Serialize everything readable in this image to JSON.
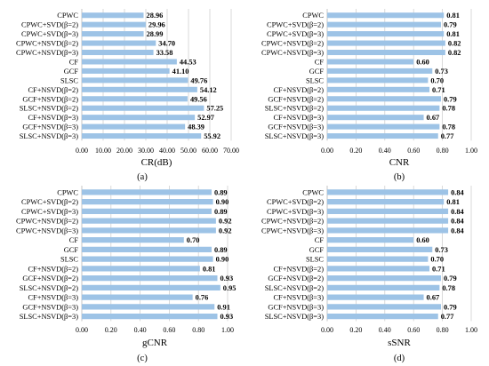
{
  "colors": {
    "bar": "#9DC3E6",
    "grid": "#d0d0d0",
    "axis": "#bfbfbf"
  },
  "chart_data": [
    {
      "type": "bar",
      "orientation": "horizontal",
      "panel_label": "(a)",
      "xlabel": "CR(dB)",
      "xlim": [
        0,
        70
      ],
      "xticks": [
        "0.00",
        "10.00",
        "20.00",
        "30.00",
        "40.00",
        "50.00",
        "60.00",
        "70.00"
      ],
      "categories": [
        "CPWC",
        "CPWC+SVD(β=2)",
        "CPWC+SVD(β=3)",
        "CPWC+NSVD(β=2)",
        "CPWC+NSVD(β=3)",
        "CF",
        "GCF",
        "SLSC",
        "CF+NSVD(β=2)",
        "GCF+NSVD(β=2)",
        "SLSC+NSVD(β=2)",
        "CF+NSVD(β=3)",
        "GCF+NSVD(β=3)",
        "SLSC+NSVD(β=3)"
      ],
      "values": [
        28.96,
        29.96,
        28.99,
        34.7,
        33.58,
        44.53,
        41.1,
        49.76,
        54.12,
        49.56,
        57.25,
        52.97,
        48.39,
        55.92
      ],
      "value_labels": [
        "28.96",
        "29.96",
        "28.99",
        "34.70",
        "33.58",
        "44.53",
        "41.10",
        "49.76",
        "54.12",
        "49.56",
        "57.25",
        "52.97",
        "48.39",
        "55.92"
      ],
      "grid": true
    },
    {
      "type": "bar",
      "orientation": "horizontal",
      "panel_label": "(b)",
      "xlabel": "CNR",
      "xlim": [
        0,
        1
      ],
      "xticks": [
        "0.00",
        "0.20",
        "0.40",
        "0.60",
        "0.80",
        "1.00"
      ],
      "categories": [
        "CPWC",
        "CPWC+SVD(β=2)",
        "CPWC+SVD(β=3)",
        "CPWC+NSVD(β=2)",
        "CPWC+NSVD(β=3)",
        "CF",
        "GCF",
        "SLSC",
        "CF+NSVD(β=2)",
        "GCF+NSVD(β=2)",
        "SLSC+NSVD(β=2)",
        "CF+NSVD(β=3)",
        "GCF+NSVD(β=3)",
        "SLSC+NSVD(β=3)"
      ],
      "values": [
        0.81,
        0.79,
        0.81,
        0.82,
        0.82,
        0.6,
        0.73,
        0.7,
        0.71,
        0.79,
        0.78,
        0.67,
        0.78,
        0.77
      ],
      "value_labels": [
        "0.81",
        "0.79",
        "0.81",
        "0.82",
        "0.82",
        "0.60",
        "0.73",
        "0.70",
        "0.71",
        "0.79",
        "0.78",
        "0.67",
        "0.78",
        "0.77"
      ],
      "grid": true
    },
    {
      "type": "bar",
      "orientation": "horizontal",
      "panel_label": "(c)",
      "xlabel": "gCNR",
      "xlim": [
        0,
        1
      ],
      "xticks": [
        "0.00",
        "0.20",
        "0.40",
        "0.60",
        "0.80",
        "1.00"
      ],
      "categories": [
        "CPWC",
        "CPWC+SVD(β=2)",
        "CPWC+SVD(β=3)",
        "CPWC+NSVD(β=2)",
        "CPWC+NSVD(β=3)",
        "CF",
        "GCF",
        "SLSC",
        "CF+NSVD(β=2)",
        "GCF+NSVD(β=2)",
        "SLSC+NSVD(β=2)",
        "CF+NSVD(β=3)",
        "GCF+NSVD(β=3)",
        "SLSC+NSVD(β=3)"
      ],
      "values": [
        0.89,
        0.9,
        0.89,
        0.92,
        0.92,
        0.7,
        0.89,
        0.9,
        0.81,
        0.93,
        0.95,
        0.76,
        0.91,
        0.93
      ],
      "value_labels": [
        "0.89",
        "0.90",
        "0.89",
        "0.92",
        "0.92",
        "0.70",
        "0.89",
        "0.90",
        "0.81",
        "0.93",
        "0.95",
        "0.76",
        "0.91",
        "0.93"
      ],
      "grid": true
    },
    {
      "type": "bar",
      "orientation": "horizontal",
      "panel_label": "(d)",
      "xlabel": "sSNR",
      "xlim": [
        0,
        1
      ],
      "xticks": [
        "0.00",
        "0.20",
        "0.40",
        "0.60",
        "0.80",
        "1.00"
      ],
      "categories": [
        "CPWC",
        "CPWC+SVD(β=2)",
        "CPWC+SVD(β=3)",
        "CPWC+NSVD(β=2)",
        "CPWC+NSVD(β=3)",
        "CF",
        "GCF",
        "SLSC",
        "CF+NSVD(β=2)",
        "GCF+NSVD(β=2)",
        "SLSC+NSVD(β=2)",
        "CF+NSVD(β=3)",
        "GCF+NSVD(β=3)",
        "SLSC+NSVD(β=3)"
      ],
      "values": [
        0.84,
        0.81,
        0.84,
        0.84,
        0.84,
        0.6,
        0.73,
        0.7,
        0.71,
        0.79,
        0.78,
        0.67,
        0.79,
        0.77
      ],
      "value_labels": [
        "0.84",
        "0.81",
        "0.84",
        "0.84",
        "0.84",
        "0.60",
        "0.73",
        "0.70",
        "0.71",
        "0.79",
        "0.78",
        "0.67",
        "0.79",
        "0.77"
      ],
      "grid": true
    }
  ]
}
